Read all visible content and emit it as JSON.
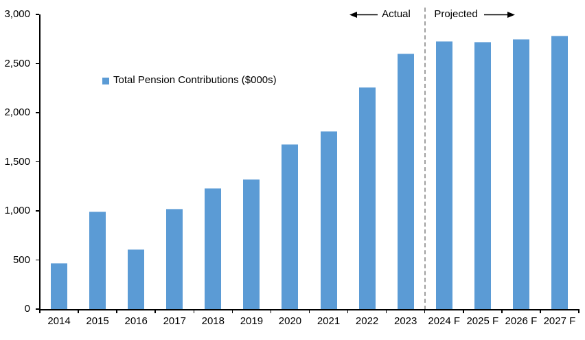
{
  "chart_data": {
    "type": "bar",
    "title": "",
    "legend": "Total Pension Contributions ($000s)",
    "categories": [
      "2014",
      "2015",
      "2016",
      "2017",
      "2018",
      "2019",
      "2020",
      "2021",
      "2022",
      "2023",
      "2024 F",
      "2025 F",
      "2026 F",
      "2027 F"
    ],
    "values": [
      470,
      990,
      610,
      1020,
      1230,
      1320,
      1680,
      1810,
      2260,
      2600,
      2730,
      2720,
      2750,
      2780
    ],
    "xlabel": "",
    "ylabel": "",
    "ylim": [
      0,
      3000
    ],
    "ytick_values": [
      0,
      500,
      1000,
      1500,
      2000,
      2500,
      3000
    ],
    "ytick_labels": [
      "0",
      "500",
      "1,000",
      "1,500",
      "2,000",
      "2,500",
      "3,000"
    ],
    "grid": "off",
    "legend_position": "inside-upper-left",
    "bar_color": "#5B9BD5",
    "bar_border_color": "#9DC3E6",
    "axis_color": "#000000",
    "divider_color": "#A0A0A0",
    "divider_boundary_index": 10
  },
  "annotations": {
    "actual_label": "Actual",
    "projected_label": "Projected"
  }
}
